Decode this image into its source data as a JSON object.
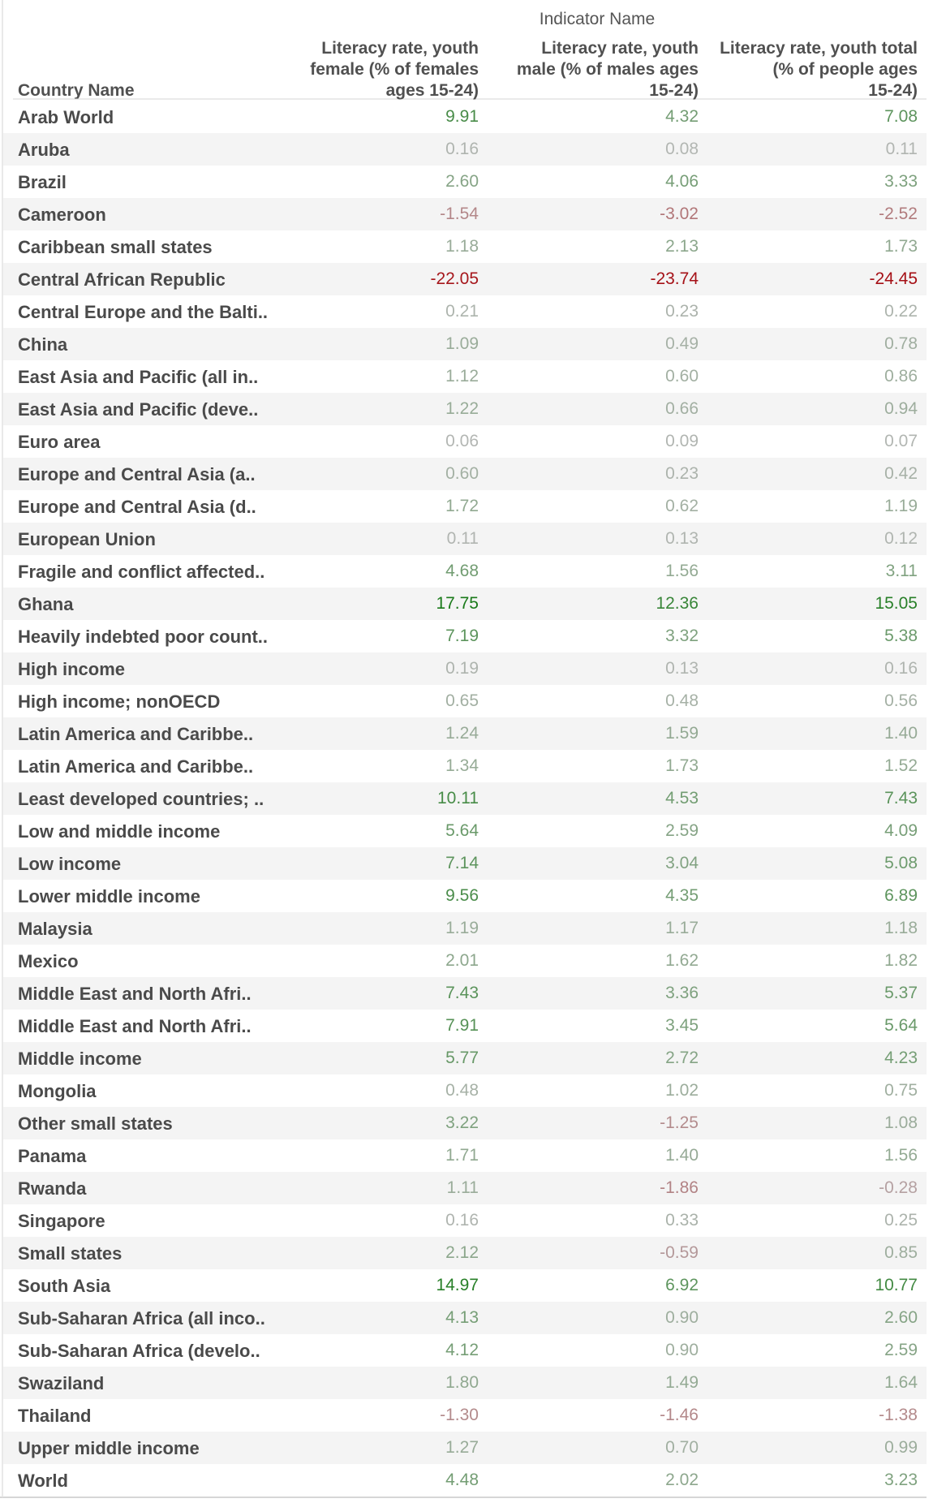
{
  "chart_data": {
    "type": "table",
    "super_header": "Indicator Name",
    "row_header": "Country Name",
    "columns": [
      "Literacy rate, youth female (% of females ages 15-24)",
      "Literacy rate, youth male (% of males ages 15-24)",
      "Literacy rate, youth total (% of people ages 15-24)"
    ],
    "header_lines": [
      [
        "Literacy rate, youth",
        "female (% of females",
        "ages 15-24)"
      ],
      [
        "Literacy rate, youth",
        "male (% of males ages",
        "15-24)"
      ],
      [
        "Literacy rate, youth total",
        "(% of people ages",
        "15-24)"
      ]
    ],
    "rows": [
      {
        "name": "Arab World",
        "values": [
          "9.91",
          "4.32",
          "7.08"
        ]
      },
      {
        "name": "Aruba",
        "values": [
          "0.16",
          "0.08",
          "0.11"
        ]
      },
      {
        "name": "Brazil",
        "values": [
          "2.60",
          "4.06",
          "3.33"
        ]
      },
      {
        "name": "Cameroon",
        "values": [
          "-1.54",
          "-3.02",
          "-2.52"
        ]
      },
      {
        "name": "Caribbean small states",
        "values": [
          "1.18",
          "2.13",
          "1.73"
        ]
      },
      {
        "name": "Central African Republic",
        "values": [
          "-22.05",
          "-23.74",
          "-24.45"
        ]
      },
      {
        "name": "Central Europe and the Balti..",
        "values": [
          "0.21",
          "0.23",
          "0.22"
        ]
      },
      {
        "name": "China",
        "values": [
          "1.09",
          "0.49",
          "0.78"
        ]
      },
      {
        "name": "East Asia  and  Pacific (all in..",
        "values": [
          "1.12",
          "0.60",
          "0.86"
        ]
      },
      {
        "name": "East Asia  and  Pacific (deve..",
        "values": [
          "1.22",
          "0.66",
          "0.94"
        ]
      },
      {
        "name": "Euro area",
        "values": [
          "0.06",
          "0.09",
          "0.07"
        ]
      },
      {
        "name": "Europe  and  Central Asia (a..",
        "values": [
          "0.60",
          "0.23",
          "0.42"
        ]
      },
      {
        "name": "Europe  and  Central Asia (d..",
        "values": [
          "1.72",
          "0.62",
          "1.19"
        ]
      },
      {
        "name": "European Union",
        "values": [
          "0.11",
          "0.13",
          "0.12"
        ]
      },
      {
        "name": "Fragile and conflict affected..",
        "values": [
          "4.68",
          "1.56",
          "3.11"
        ]
      },
      {
        "name": "Ghana",
        "values": [
          "17.75",
          "12.36",
          "15.05"
        ]
      },
      {
        "name": "Heavily indebted poor count..",
        "values": [
          "7.19",
          "3.32",
          "5.38"
        ]
      },
      {
        "name": "High income",
        "values": [
          "0.19",
          "0.13",
          "0.16"
        ]
      },
      {
        "name": "High income; nonOECD",
        "values": [
          "0.65",
          "0.48",
          "0.56"
        ]
      },
      {
        "name": "Latin America  and  Caribbe..",
        "values": [
          "1.24",
          "1.59",
          "1.40"
        ]
      },
      {
        "name": "Latin America  and  Caribbe..",
        "values": [
          "1.34",
          "1.73",
          "1.52"
        ]
      },
      {
        "name": "Least developed countries; ..",
        "values": [
          "10.11",
          "4.53",
          "7.43"
        ]
      },
      {
        "name": "Low  and  middle income",
        "values": [
          "5.64",
          "2.59",
          "4.09"
        ]
      },
      {
        "name": "Low income",
        "values": [
          "7.14",
          "3.04",
          "5.08"
        ]
      },
      {
        "name": "Lower middle income",
        "values": [
          "9.56",
          "4.35",
          "6.89"
        ]
      },
      {
        "name": "Malaysia",
        "values": [
          "1.19",
          "1.17",
          "1.18"
        ]
      },
      {
        "name": "Mexico",
        "values": [
          "2.01",
          "1.62",
          "1.82"
        ]
      },
      {
        "name": "Middle East  and  North Afri..",
        "values": [
          "7.43",
          "3.36",
          "5.37"
        ]
      },
      {
        "name": "Middle East  and  North Afri..",
        "values": [
          "7.91",
          "3.45",
          "5.64"
        ]
      },
      {
        "name": "Middle income",
        "values": [
          "5.77",
          "2.72",
          "4.23"
        ]
      },
      {
        "name": "Mongolia",
        "values": [
          "0.48",
          "1.02",
          "0.75"
        ]
      },
      {
        "name": "Other small states",
        "values": [
          "3.22",
          "-1.25",
          "1.08"
        ]
      },
      {
        "name": "Panama",
        "values": [
          "1.71",
          "1.40",
          "1.56"
        ]
      },
      {
        "name": "Rwanda",
        "values": [
          "1.11",
          "-1.86",
          "-0.28"
        ]
      },
      {
        "name": "Singapore",
        "values": [
          "0.16",
          "0.33",
          "0.25"
        ]
      },
      {
        "name": "Small states",
        "values": [
          "2.12",
          "-0.59",
          "0.85"
        ]
      },
      {
        "name": "South Asia",
        "values": [
          "14.97",
          "6.92",
          "10.77"
        ]
      },
      {
        "name": "Sub-Saharan Africa (all inco..",
        "values": [
          "4.13",
          "0.90",
          "2.60"
        ]
      },
      {
        "name": "Sub-Saharan Africa (develo..",
        "values": [
          "4.12",
          "0.90",
          "2.59"
        ]
      },
      {
        "name": "Swaziland",
        "values": [
          "1.80",
          "1.49",
          "1.64"
        ]
      },
      {
        "name": "Thailand",
        "values": [
          "-1.30",
          "-1.46",
          "-1.38"
        ]
      },
      {
        "name": "Upper middle income",
        "values": [
          "1.27",
          "0.70",
          "0.99"
        ]
      },
      {
        "name": "World",
        "values": [
          "4.48",
          "2.02",
          "3.23"
        ]
      }
    ],
    "color_scale": {
      "type": "diverging",
      "negative": "#a50f15",
      "neutral": "#b8b8b8",
      "positive": "#1a7a1a"
    }
  }
}
